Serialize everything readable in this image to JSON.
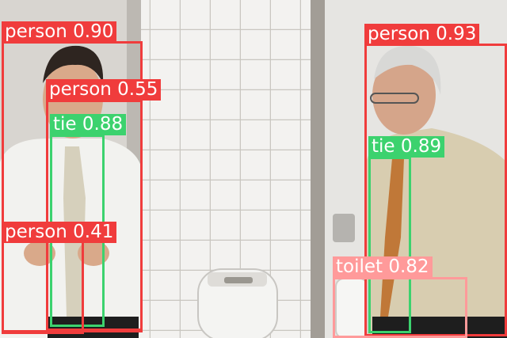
{
  "detections": [
    {
      "label": "person 0.90",
      "class": "person",
      "score": 0.9,
      "color": "#f03c3c"
    },
    {
      "label": "person 0.55",
      "class": "person",
      "score": 0.55,
      "color": "#f03c3c"
    },
    {
      "label": "tie 0.88",
      "class": "tie",
      "score": 0.88,
      "color": "#3cd26e"
    },
    {
      "label": "person 0.41",
      "class": "person",
      "score": 0.41,
      "color": "#f03c3c"
    },
    {
      "label": "person 0.93",
      "class": "person",
      "score": 0.93,
      "color": "#f03c3c"
    },
    {
      "label": "tie 0.89",
      "class": "tie",
      "score": 0.89,
      "color": "#3cd26e"
    },
    {
      "label": "toilet 0.82",
      "class": "toilet",
      "score": 0.82,
      "color": "#ff9a9a"
    }
  ]
}
